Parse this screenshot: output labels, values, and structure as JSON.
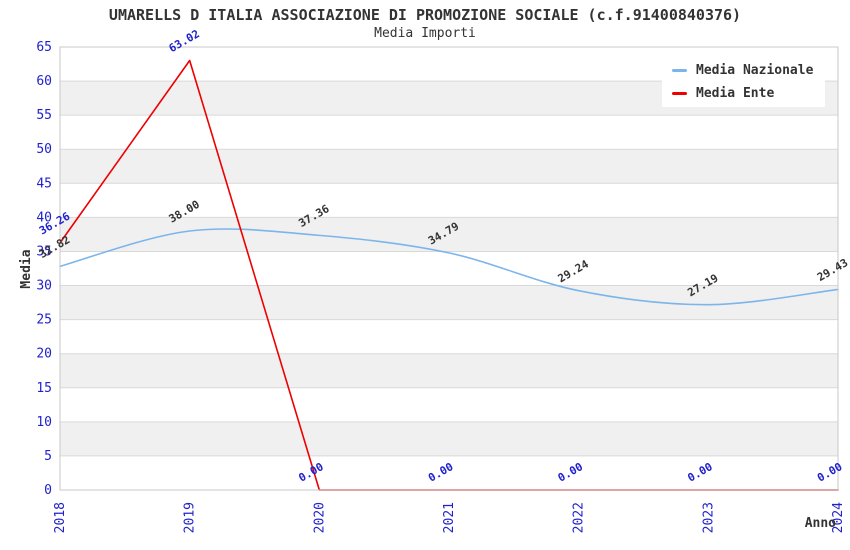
{
  "chart_data": {
    "type": "line",
    "title": "UMARELLS D ITALIA ASSOCIAZIONE DI PROMOZIONE SOCIALE (c.f.91400840376)",
    "subtitle": "Media Importi",
    "xlabel": "Anno",
    "ylabel": "Media",
    "categories": [
      "2018",
      "2019",
      "2020",
      "2021",
      "2022",
      "2023",
      "2024"
    ],
    "series": [
      {
        "name": "Media Nazionale",
        "color": "#7cb5ec",
        "label_color": "#333333",
        "smooth": true,
        "values": [
          32.82,
          38.0,
          37.36,
          34.79,
          29.24,
          27.19,
          29.43
        ]
      },
      {
        "name": "Media Ente",
        "color": "#ee0000",
        "label_color": "#2222cc",
        "smooth": false,
        "values": [
          36.26,
          63.02,
          0.0,
          0.0,
          0.0,
          0.0,
          0.0
        ]
      }
    ],
    "ylim": [
      0,
      65
    ],
    "ytick_step": 5,
    "grid": true,
    "value_decimals": 2,
    "legend_position": "top-right",
    "colors": {
      "tick_label": "#2222cc",
      "axis_title": "#333333",
      "band": "#f0f0f0",
      "gridline": "#d9d9d9",
      "axis_line": "#c8c8c8",
      "background": "#ffffff"
    }
  }
}
